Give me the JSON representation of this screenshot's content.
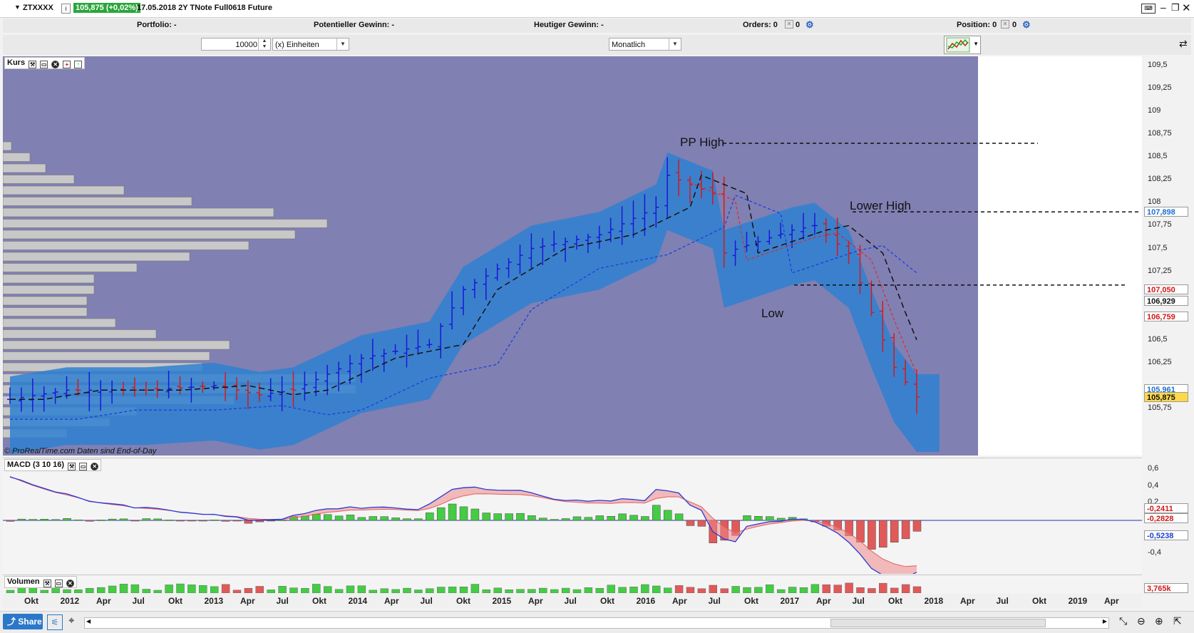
{
  "topbar": {
    "symbol": "ZTXXXX",
    "info_icon": "i",
    "quote": "105,875 (+0,02%)",
    "date_name": "17.05.2018  2Y TNote Full0618 Future",
    "window_buttons": [
      "keyboard-icon",
      "minimize-icon",
      "restore-icon",
      "close-icon"
    ]
  },
  "infobar": {
    "portfolio": "Portfolio: -",
    "potential_gain": "Potentieller Gewinn: -",
    "today_gain": "Heutiger Gewinn: -",
    "orders": "Orders: 0",
    "orders_count2": "0",
    "position": "Position: 0",
    "position_count2": "0"
  },
  "controls": {
    "quantity": "10000",
    "unit": "(x) Einheiten",
    "period": "Monatlich"
  },
  "price_panel": {
    "label": "Kurs",
    "watermark": "© ProRealTime.com",
    "eod_note": "Daten sind End-of-Day",
    "annotations": {
      "pp_high": "PP High",
      "lower_high": "Lower High",
      "low": "Low"
    },
    "y_ticks": [
      "109,5",
      "109,25",
      "109",
      "108,75",
      "108,5",
      "108,25",
      "108",
      "107,75",
      "107,5",
      "107,25",
      "106,5",
      "106,25",
      "105,75"
    ],
    "tags": [
      {
        "value": "107,898",
        "color": "#1e6fd0"
      },
      {
        "value": "107,050",
        "color": "#d01818"
      },
      {
        "value": "106,929",
        "color": "#111111"
      },
      {
        "value": "106,759",
        "color": "#d01818"
      },
      {
        "value": "105,961",
        "color": "#1e6fd0"
      },
      {
        "value": "105,875",
        "color": "#111111"
      }
    ]
  },
  "macd_panel": {
    "label": "MACD (3 10 16)",
    "y_ticks": [
      "0,6",
      "0,4",
      "0,2",
      "0",
      "-0,4"
    ],
    "tags": [
      {
        "value": "-0,2411",
        "color": "#d01818"
      },
      {
        "value": "-0,2828",
        "color": "#d01818"
      },
      {
        "value": "-0,5238",
        "color": "#1e3fd0"
      }
    ]
  },
  "volume_panel": {
    "label": "Volumen",
    "tag": "3,765k"
  },
  "x_axis": [
    "Okt",
    "2012",
    "Apr",
    "Jul",
    "Okt",
    "2013",
    "Apr",
    "Jul",
    "Okt",
    "2014",
    "Apr",
    "Jul",
    "Okt",
    "2015",
    "Apr",
    "Jul",
    "Okt",
    "2016",
    "Apr",
    "Jul",
    "Okt",
    "2017",
    "Apr",
    "Jul",
    "Okt",
    "2018",
    "Apr",
    "Jul",
    "Okt",
    "2019",
    "Apr"
  ],
  "bottombar": {
    "share": "Share"
  },
  "colors": {
    "background_purple": "#8080b3",
    "cloud_blue": "#2f80d0",
    "bull_bar": "#1818d8",
    "bear_bar": "#d81818",
    "macd_pos": "#44cc44",
    "macd_neg": "#e05a5a"
  },
  "chart_data": {
    "type": "bar",
    "title": "",
    "xlabel": "",
    "ylabel": "",
    "ylim": [
      105.6,
      109.6
    ],
    "grid": false,
    "ohlc_monthly": [
      {
        "date": "2011-10",
        "open": 105.75,
        "high": 106.05,
        "low": 105.6,
        "close": 105.9
      },
      {
        "date": "2012-03",
        "open": 105.9,
        "high": 106.05,
        "low": 105.65,
        "close": 105.95
      },
      {
        "date": "2012-08",
        "open": 105.95,
        "high": 106.05,
        "low": 105.8,
        "close": 105.95
      },
      {
        "date": "2013-01",
        "open": 105.95,
        "high": 106.1,
        "low": 105.85,
        "close": 106.0
      },
      {
        "date": "2013-06",
        "open": 106.0,
        "high": 106.05,
        "low": 105.7,
        "close": 105.95
      },
      {
        "date": "2013-09",
        "open": 105.95,
        "high": 106.15,
        "low": 105.65,
        "close": 106.05
      },
      {
        "date": "2014-03",
        "open": 106.05,
        "high": 106.45,
        "low": 106.0,
        "close": 106.35
      },
      {
        "date": "2014-09",
        "open": 106.35,
        "high": 106.6,
        "low": 106.25,
        "close": 106.45
      },
      {
        "date": "2014-12",
        "open": 106.45,
        "high": 107.3,
        "low": 106.4,
        "close": 107.05
      },
      {
        "date": "2015-06",
        "open": 107.05,
        "high": 107.65,
        "low": 106.9,
        "close": 107.55
      },
      {
        "date": "2015-12",
        "open": 107.55,
        "high": 107.95,
        "low": 107.2,
        "close": 107.65
      },
      {
        "date": "2016-06",
        "open": 107.65,
        "high": 108.2,
        "low": 107.4,
        "close": 107.95
      },
      {
        "date": "2016-07",
        "open": 107.95,
        "high": 108.65,
        "low": 107.8,
        "close": 108.35
      },
      {
        "date": "2016-12",
        "open": 108.35,
        "high": 108.3,
        "low": 107.3,
        "close": 107.4
      },
      {
        "date": "2017-06",
        "open": 107.4,
        "high": 107.9,
        "low": 107.25,
        "close": 107.75
      },
      {
        "date": "2017-09",
        "open": 107.75,
        "high": 107.9,
        "low": 107.4,
        "close": 107.5
      },
      {
        "date": "2018-01",
        "open": 107.5,
        "high": 107.0,
        "low": 106.3,
        "close": 106.4
      },
      {
        "date": "2018-05",
        "open": 106.4,
        "high": 106.35,
        "low": 105.8,
        "close": 105.875
      }
    ],
    "levels": {
      "pp_high": 108.65,
      "lower_high": 107.9,
      "low": 107.1
    },
    "macd": {
      "name": "MACD (3 10 16)",
      "histogram_last": -0.2411,
      "signal_last": -0.2828,
      "line_last": -0.5238
    },
    "volume_last": "3,765k"
  }
}
